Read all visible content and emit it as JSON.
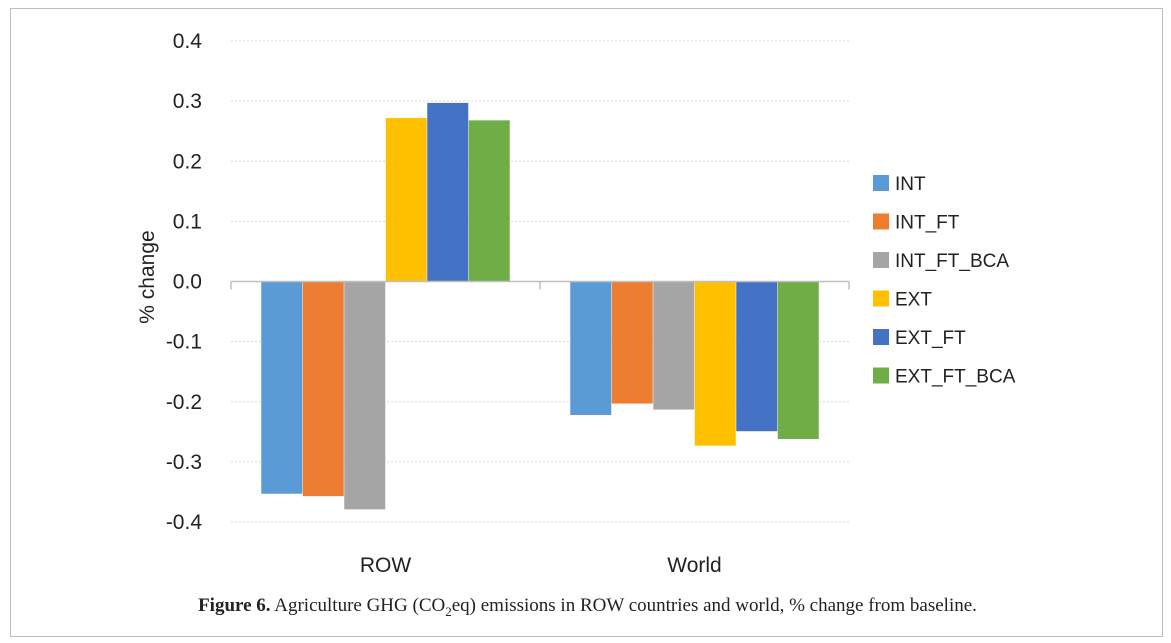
{
  "chart_data": {
    "type": "bar",
    "categories": [
      "ROW",
      "World"
    ],
    "series": [
      {
        "name": "INT",
        "values": [
          -0.353,
          -0.222
        ],
        "color": "#5B9BD5"
      },
      {
        "name": "INT_FT",
        "values": [
          -0.357,
          -0.203
        ],
        "color": "#ED7D31"
      },
      {
        "name": "INT_FT_BCA",
        "values": [
          -0.379,
          -0.213
        ],
        "color": "#A5A5A5"
      },
      {
        "name": "EXT",
        "values": [
          0.272,
          -0.273
        ],
        "color": "#FFC000"
      },
      {
        "name": "EXT_FT",
        "values": [
          0.297,
          -0.249
        ],
        "color": "#4472C4"
      },
      {
        "name": "EXT_FT_BCA",
        "values": [
          0.268,
          -0.262
        ],
        "color": "#70AD47"
      }
    ],
    "ylabel": "% change",
    "ylim": [
      -0.4,
      0.4
    ],
    "yticks": [
      "0.4",
      "0.3",
      "0.2",
      "0.1",
      "0.0",
      "-0.1",
      "-0.2",
      "-0.3",
      "-0.4"
    ],
    "grid": true,
    "legend": "right"
  },
  "caption": {
    "label": "Figure 6.",
    "text_before": " Agriculture GHG (CO",
    "subscript": "2",
    "text_after": "eq) emissions in ROW countries and world, % change from baseline."
  }
}
